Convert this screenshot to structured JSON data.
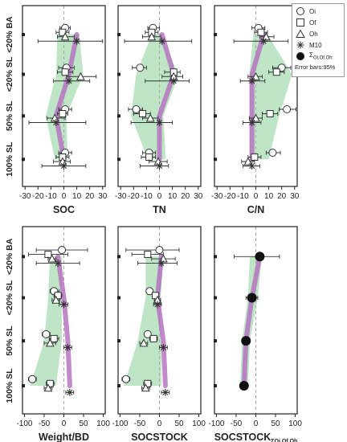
{
  "y_categories": [
    "<20% BA",
    "<20% SL",
    "50% SL",
    "100% SL"
  ],
  "legend": {
    "items": [
      {
        "label": "Oi",
        "marker": "circle"
      },
      {
        "label": "Of",
        "marker": "square"
      },
      {
        "label": "Oh",
        "marker": "triangle"
      },
      {
        "label": "M10",
        "marker": "star"
      },
      {
        "label": "ΣOi,Of,Oh",
        "label_main": "Σ",
        "label_sub": "Oi,Of,Oh",
        "marker": "filled-circle"
      }
    ],
    "note": "Error bars:95%"
  },
  "colors": {
    "band": "#a8dcb3",
    "line": "#b774c2",
    "marker": "#333333",
    "refline": "#aaaaaa",
    "axis": "#222222"
  },
  "chart_data": [
    {
      "type": "scatter",
      "xlabel": "SOC",
      "xlim": [
        -32,
        32
      ],
      "xticks": [
        -30,
        -20,
        -10,
        0,
        10,
        20,
        30
      ],
      "series": [
        {
          "name": "Oi",
          "marker": "circle",
          "values": [
            1,
            2,
            1,
            1
          ],
          "err_low": [
            -3,
            -4,
            -4,
            -4
          ],
          "err_high": [
            5,
            8,
            6,
            6
          ]
        },
        {
          "name": "Of",
          "marker": "square",
          "values": [
            -1,
            1,
            -1,
            -1
          ],
          "err_low": [
            -6,
            -5,
            -5,
            -6
          ],
          "err_high": [
            4,
            7,
            3,
            4
          ]
        },
        {
          "name": "Oh",
          "marker": "triangle",
          "values": [
            1,
            13,
            -7,
            -1
          ],
          "err_low": [
            -5,
            2,
            -13,
            -8
          ],
          "err_high": [
            8,
            25,
            1,
            5
          ]
        },
        {
          "name": "M10",
          "marker": "star",
          "values": [
            10,
            4,
            -6,
            0
          ],
          "err_low": [
            -20,
            -8,
            -27,
            -17
          ],
          "err_high": [
            30,
            20,
            17,
            17
          ]
        }
      ],
      "band": {
        "low": [
          -5,
          -6,
          -14,
          -7
        ],
        "high": [
          12,
          15,
          2,
          3
        ]
      }
    },
    {
      "type": "scatter",
      "xlabel": "TN",
      "xlim": [
        -32,
        32
      ],
      "xticks": [
        -30,
        -20,
        -10,
        0,
        10,
        20,
        30
      ],
      "series": [
        {
          "name": "Oi",
          "marker": "circle",
          "values": [
            -5,
            -15,
            -18,
            -8
          ],
          "err_low": [
            -9,
            -21,
            -24,
            -13
          ],
          "err_high": [
            0,
            -10,
            -13,
            -3
          ]
        },
        {
          "name": "Of",
          "marker": "square",
          "values": [
            -6,
            11,
            -13,
            -8
          ],
          "err_low": [
            -11,
            4,
            -20,
            -14
          ],
          "err_high": [
            -1,
            16,
            -7,
            -3
          ]
        },
        {
          "name": "Oh",
          "marker": "triangle",
          "values": [
            -6,
            11,
            -7,
            -1
          ],
          "err_low": [
            -13,
            2,
            -13,
            -8
          ],
          "err_high": [
            1,
            18,
            -1,
            6
          ]
        },
        {
          "name": "M10",
          "marker": "star",
          "values": [
            2,
            11,
            0,
            0
          ],
          "err_low": [
            -27,
            -11,
            -22,
            -15
          ],
          "err_high": [
            25,
            23,
            10,
            7
          ]
        }
      ],
      "band": {
        "low": [
          -6,
          -18,
          -22,
          -9
        ],
        "high": [
          0,
          15,
          3,
          5
        ]
      }
    },
    {
      "type": "scatter",
      "xlabel": "C/N",
      "xlim": [
        -32,
        32
      ],
      "xticks": [
        -30,
        -20,
        -10,
        0,
        10,
        20,
        30
      ],
      "series": [
        {
          "name": "Oi",
          "marker": "circle",
          "values": [
            2,
            20,
            24,
            13
          ],
          "err_low": [
            -3,
            13,
            18,
            8
          ],
          "err_high": [
            7,
            27,
            31,
            19
          ]
        },
        {
          "name": "Of",
          "marker": "square",
          "values": [
            4,
            16,
            11,
            -1
          ],
          "err_low": [
            -1,
            10,
            5,
            -6
          ],
          "err_high": [
            9,
            22,
            17,
            4
          ]
        },
        {
          "name": "Oh",
          "marker": "triangle",
          "values": [
            8,
            0,
            0,
            -6
          ],
          "err_low": [
            3,
            -6,
            -5,
            -11
          ],
          "err_high": [
            14,
            5,
            5,
            -1
          ]
        },
        {
          "name": "M10",
          "marker": "star",
          "values": [
            6,
            -3,
            -3,
            -3
          ],
          "err_low": [
            -17,
            -12,
            -10,
            -10
          ],
          "err_high": [
            25,
            7,
            4,
            3
          ]
        }
      ],
      "band": {
        "low": [
          -2,
          -5,
          -5,
          -5
        ],
        "high": [
          9,
          28,
          18,
          10
        ]
      }
    },
    {
      "type": "scatter",
      "xlabel": "Weight/BD",
      "xlim": [
        -105,
        105
      ],
      "xticks": [
        -100,
        -50,
        0,
        50,
        100
      ],
      "series": [
        {
          "name": "Oi",
          "marker": "circle",
          "values": [
            -5,
            -25,
            -45,
            -80
          ],
          "err_low": [
            -70,
            -35,
            -55,
            -90
          ],
          "err_high": [
            60,
            -12,
            -35,
            -70
          ]
        },
        {
          "name": "Of",
          "marker": "square",
          "values": [
            -40,
            -15,
            -25,
            -35
          ],
          "err_low": [
            -90,
            -25,
            -37,
            -45
          ],
          "err_high": [
            10,
            -5,
            -13,
            -25
          ]
        },
        {
          "name": "Oh",
          "marker": "triangle",
          "values": [
            -30,
            -20,
            -35,
            -40
          ],
          "err_low": [
            -40,
            -30,
            -50,
            -50
          ],
          "err_high": [
            -20,
            -10,
            -20,
            -30
          ]
        },
        {
          "name": "M10",
          "marker": "star",
          "values": [
            -15,
            0,
            10,
            15
          ],
          "err_low": [
            -70,
            -12,
            0,
            5
          ],
          "err_high": [
            40,
            10,
            20,
            25
          ]
        }
      ],
      "band": {
        "low": [
          -35,
          -40,
          -50,
          -85
        ],
        "high": [
          -5,
          -5,
          -5,
          -20
        ]
      }
    },
    {
      "type": "scatter",
      "xlabel": "SOCSTOCK",
      "xlim": [
        -105,
        105
      ],
      "xticks": [
        -100,
        -50,
        0,
        50,
        100
      ],
      "series": [
        {
          "name": "Oi",
          "marker": "circle",
          "values": [
            0,
            -25,
            -30,
            -85
          ],
          "err_low": [
            -85,
            -33,
            -38,
            -95
          ],
          "err_high": [
            50,
            -17,
            -22,
            -75
          ]
        },
        {
          "name": "Of",
          "marker": "square",
          "values": [
            -30,
            -10,
            -15,
            -30
          ],
          "err_low": [
            -70,
            -18,
            -25,
            -40
          ],
          "err_high": [
            10,
            -2,
            -5,
            -20
          ]
        },
        {
          "name": "Oh",
          "marker": "triangle",
          "values": [
            10,
            -5,
            -40,
            -35
          ],
          "err_low": [
            -20,
            -13,
            -50,
            -45
          ],
          "err_high": [
            40,
            3,
            -30,
            -25
          ]
        },
        {
          "name": "M10",
          "marker": "star",
          "values": [
            5,
            -5,
            10,
            15
          ],
          "err_low": [
            -55,
            -15,
            0,
            5
          ],
          "err_high": [
            45,
            5,
            20,
            25
          ]
        }
      ],
      "band": {
        "low": [
          -35,
          -35,
          -55,
          -90
        ],
        "high": [
          10,
          3,
          5,
          5
        ]
      }
    },
    {
      "type": "scatter",
      "xlabel": "SOCSTOCKΣOi,Of,Oh",
      "xlabel_main": "SOCSTOCK",
      "xlabel_sub": "ΣOi,Of,Oh",
      "xlim": [
        -105,
        105
      ],
      "xticks": [
        -100,
        -50,
        0,
        50,
        100
      ],
      "series": [
        {
          "name": "ΣOi,Of,Oh",
          "marker": "filled-circle",
          "values": [
            10,
            -10,
            -25,
            -30
          ],
          "err_low": [
            -55,
            -25,
            -35,
            -40
          ],
          "err_high": [
            60,
            5,
            -15,
            -20
          ]
        }
      ],
      "band": {
        "low": [
          -15,
          -20,
          -35,
          -40
        ],
        "high": [
          15,
          5,
          -15,
          -20
        ]
      }
    }
  ]
}
